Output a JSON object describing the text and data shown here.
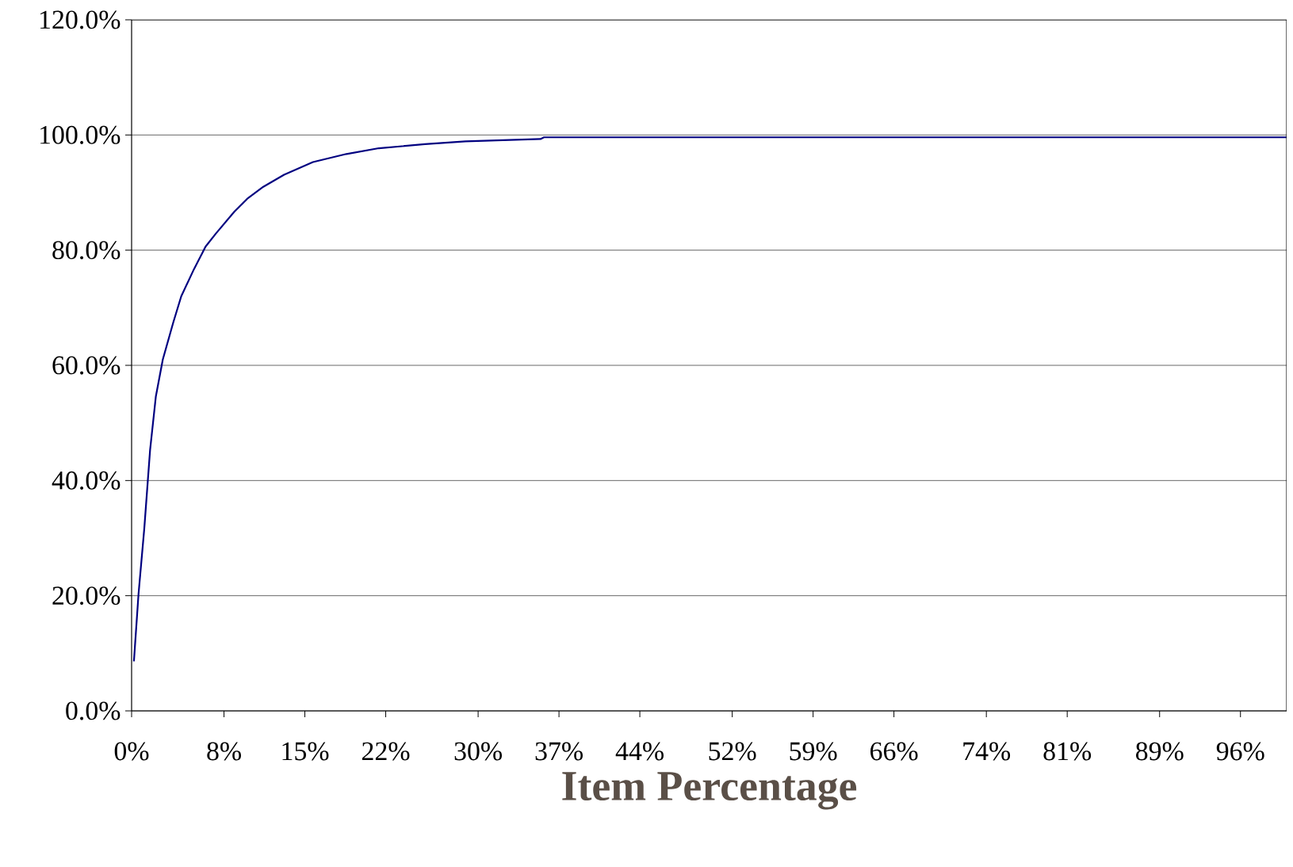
{
  "chart_data": {
    "type": "line",
    "xlabel": "Item Percentage",
    "x": [
      0.2,
      0.6,
      1.1,
      1.6,
      2.1,
      2.7,
      3.6,
      4.3,
      5.4,
      6.4,
      7.3,
      8.9,
      10,
      11.4,
      13.2,
      15.7,
      18.6,
      21.4,
      25.4,
      28.9,
      35.4,
      35.7,
      100
    ],
    "series": [
      {
        "color": "#000080",
        "values": [
          8.6,
          20.3,
          31.7,
          45.3,
          54.6,
          61,
          67.4,
          72,
          76.7,
          80.6,
          82.9,
          86.7,
          88.9,
          91,
          93.1,
          95.3,
          96.7,
          97.7,
          98.4,
          98.9,
          99.3,
          99.6,
          99.6
        ]
      }
    ],
    "xlim": [
      0,
      100
    ],
    "xticks": [
      {
        "value": 0,
        "label": "0%"
      },
      {
        "value": 8,
        "label": "8%"
      },
      {
        "value": 15,
        "label": "15%"
      },
      {
        "value": 22,
        "label": "22%"
      },
      {
        "value": 30,
        "label": "30%"
      },
      {
        "value": 37,
        "label": "37%"
      },
      {
        "value": 44,
        "label": "44%"
      },
      {
        "value": 52,
        "label": "52%"
      },
      {
        "value": 59,
        "label": "59%"
      },
      {
        "value": 66,
        "label": "66%"
      },
      {
        "value": 74,
        "label": "74%"
      },
      {
        "value": 81,
        "label": "81%"
      },
      {
        "value": 89,
        "label": "89%"
      },
      {
        "value": 96,
        "label": "96%"
      }
    ],
    "ylim": [
      0,
      120
    ],
    "yticks": [
      {
        "value": 0,
        "label": "0.0%"
      },
      {
        "value": 20,
        "label": "20.0%"
      },
      {
        "value": 40,
        "label": "40.0%"
      },
      {
        "value": 60,
        "label": "60.0%"
      },
      {
        "value": 80,
        "label": "80.0%"
      },
      {
        "value": 100,
        "label": "100.0%"
      },
      {
        "value": 120,
        "label": "120.0%"
      }
    ],
    "grid": "y"
  }
}
